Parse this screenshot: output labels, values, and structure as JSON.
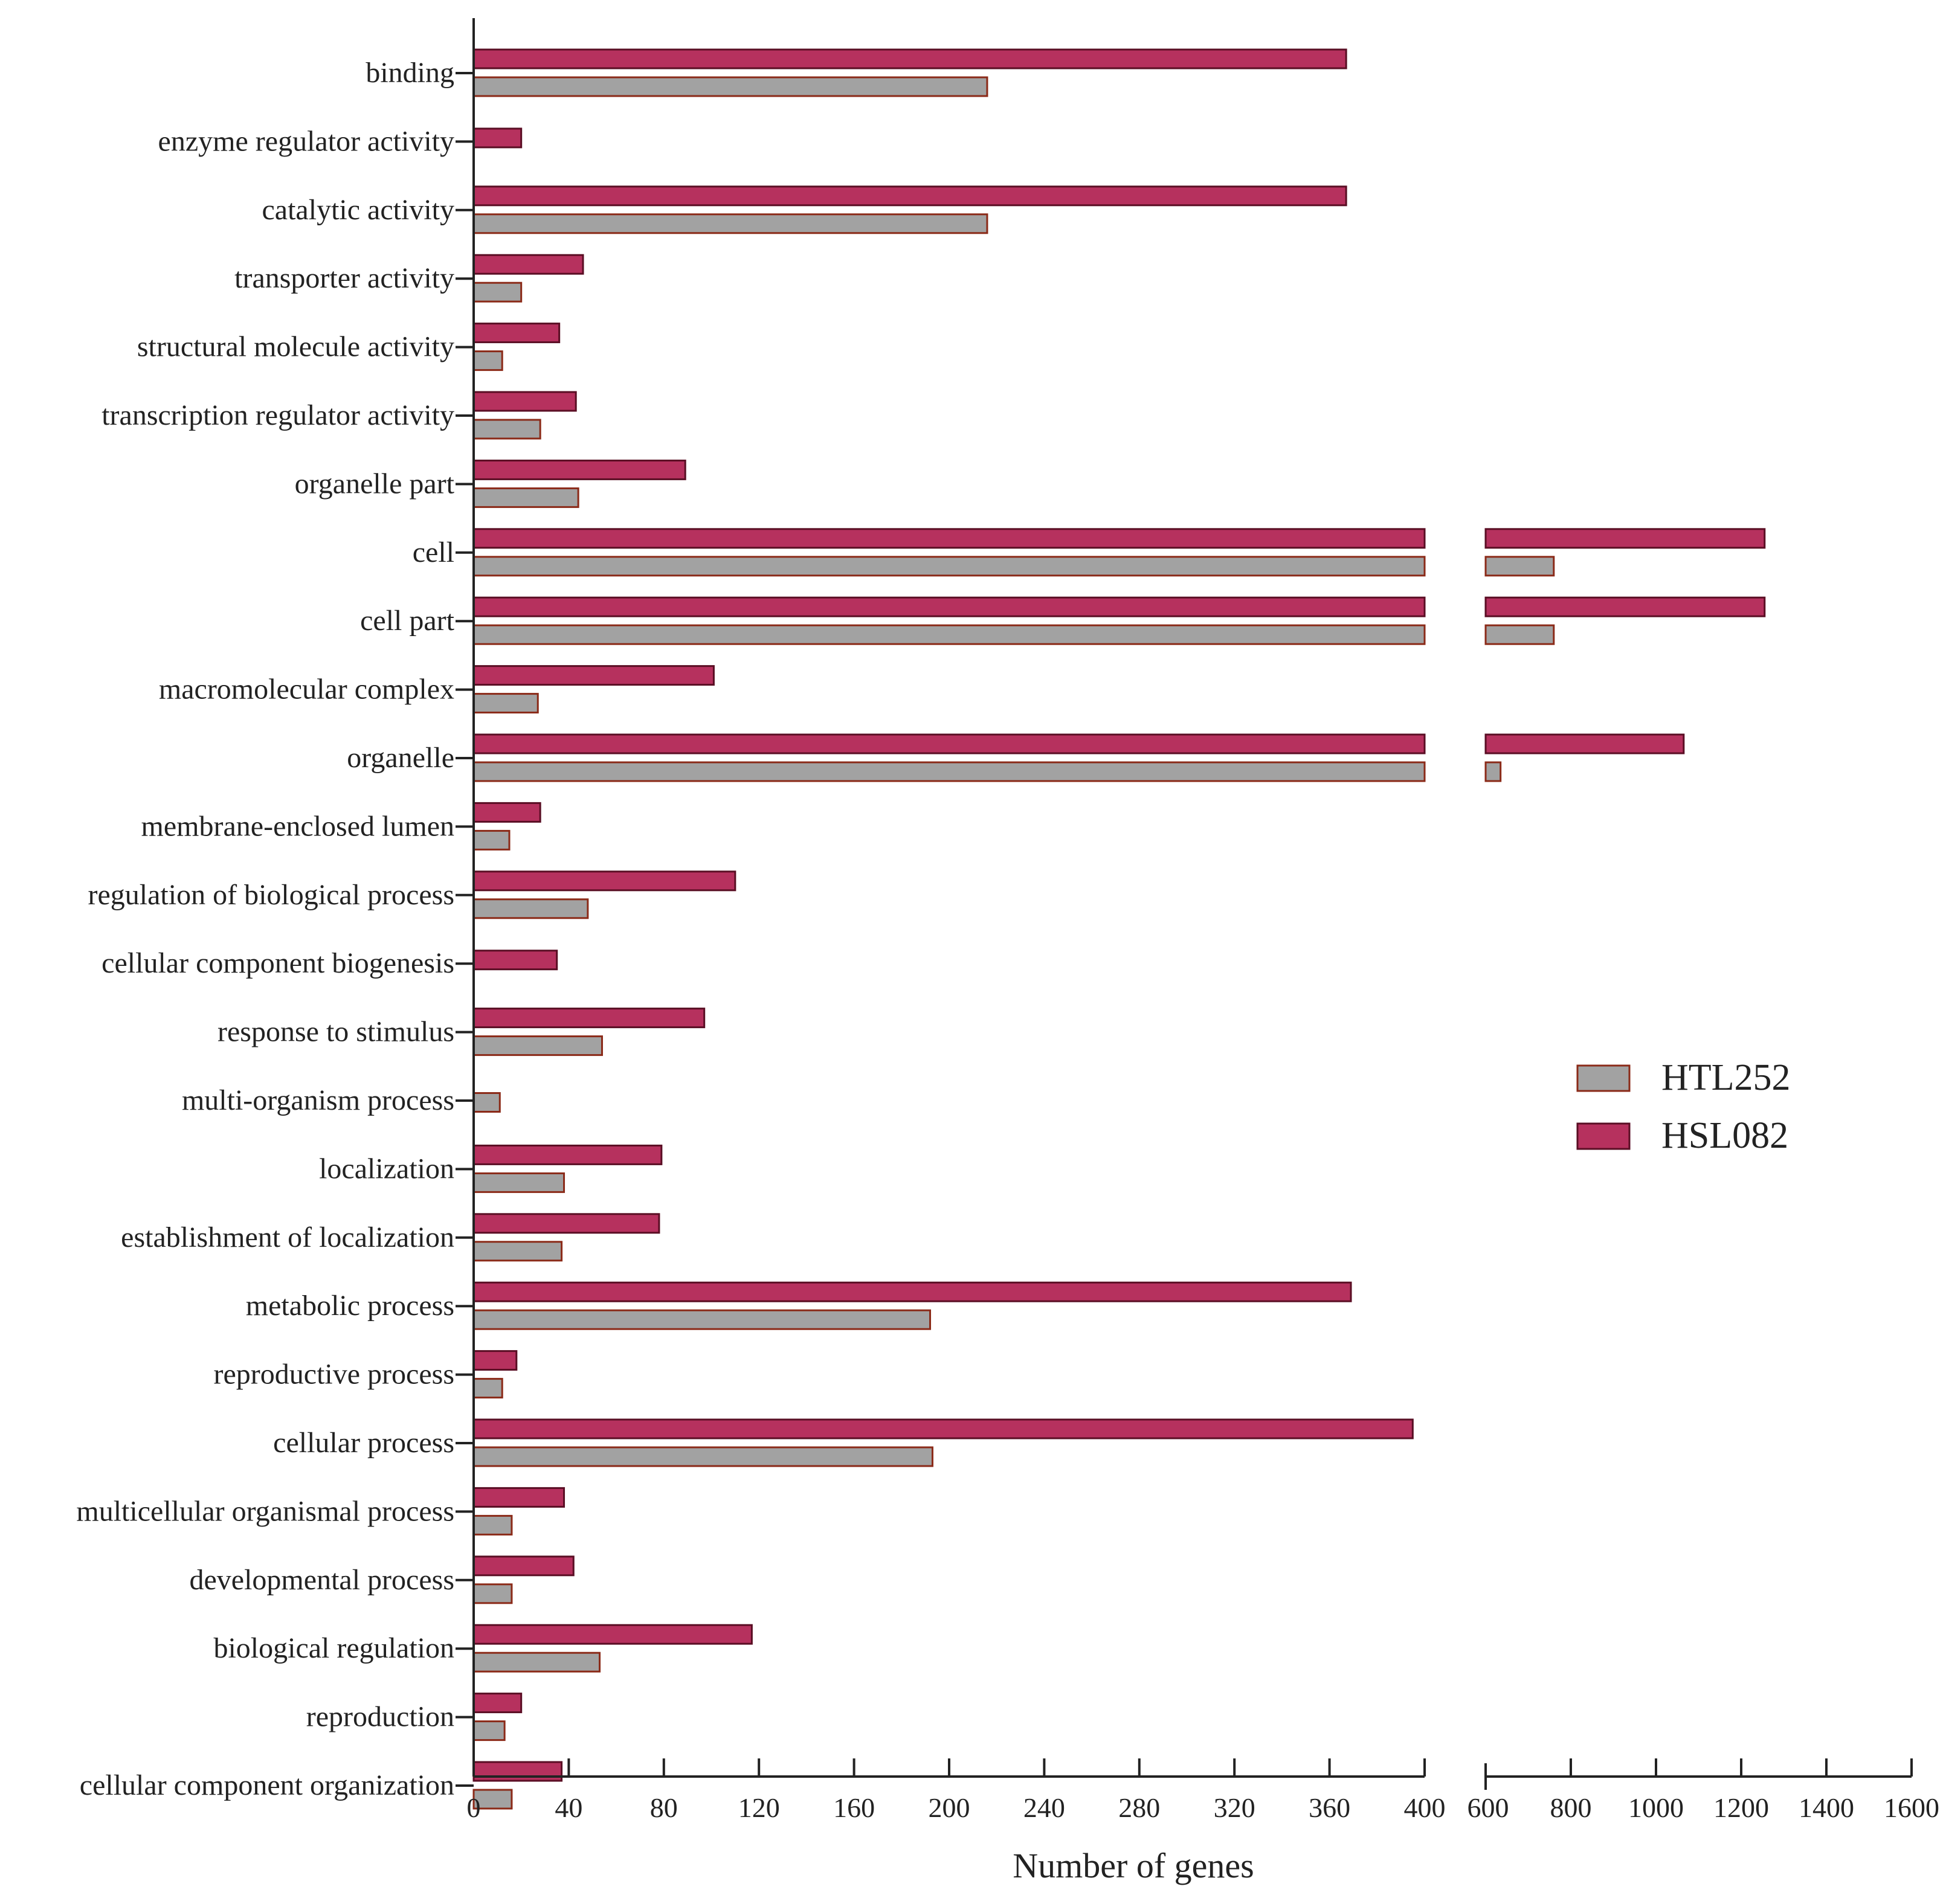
{
  "chart_data": {
    "type": "bar",
    "orientation": "horizontal",
    "xlabel": "Number of genes",
    "ylabel": "",
    "axis_break": {
      "segment1": [
        0,
        400
      ],
      "segment2": [
        600,
        1600
      ]
    },
    "segment1_ticks": [
      "0",
      "40",
      "80",
      "120",
      "160",
      "200",
      "240",
      "280",
      "320",
      "360",
      "400"
    ],
    "segment2_ticks": [
      "600",
      "800",
      "1000",
      "1200",
      "1400",
      "1600"
    ],
    "legend": {
      "position": "right",
      "entries": [
        {
          "name": "HTL252",
          "color": "#a2a2a2"
        },
        {
          "name": "HSL082",
          "color": "#b6315e"
        }
      ]
    },
    "colors": {
      "HTL252": "#a2a2a2",
      "HSL082": "#b6315e",
      "HTL252_edge": "#8b2a18",
      "HSL082_edge": "#5a0e24"
    },
    "categories": [
      "binding",
      "enzyme regulator activity",
      "catalytic activity",
      "transporter activity",
      "structural molecule activity",
      "transcription regulator activity",
      "organelle part",
      "cell",
      "cell part",
      "macromolecular complex",
      "organelle",
      "membrane-enclosed lumen",
      "regulation of biological process",
      "cellular component biogenesis",
      "response to stimulus",
      "multi-organism process",
      "localization",
      "establishment of localization",
      "metabolic process",
      "reproductive process",
      "cellular process",
      "multicellular organismal process",
      "developmental process",
      "biological regulation",
      "reproduction",
      "cellular component organization"
    ],
    "series": [
      {
        "name": "HSL082",
        "values": [
          367,
          20,
          367,
          46,
          36,
          43,
          89,
          1255,
          1255,
          101,
          1065,
          28,
          110,
          35,
          97,
          null,
          79,
          78,
          369,
          18,
          395,
          38,
          42,
          117,
          20,
          37
        ]
      },
      {
        "name": "HTL252",
        "values": [
          216,
          null,
          216,
          20,
          12,
          28,
          44,
          760,
          760,
          27,
          635,
          15,
          48,
          null,
          54,
          11,
          38,
          37,
          192,
          12,
          193,
          16,
          16,
          53,
          13,
          16
        ]
      }
    ]
  }
}
